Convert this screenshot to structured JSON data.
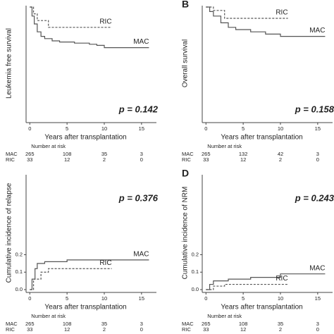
{
  "chart_data": [
    {
      "type": "line",
      "ylabel": "Leukemia free survival",
      "xlabel": "Years after transplantation",
      "annotation": "p = 0.142",
      "xlim": [
        -0.5,
        17
      ],
      "xticks": [
        0,
        5,
        10,
        15
      ],
      "ylim": [
        0,
        1
      ],
      "series": [
        {
          "name": "MAC",
          "color": "#555555",
          "dash": false,
          "x": [
            0,
            0.3,
            0.6,
            1,
            1.5,
            2,
            3,
            4,
            6,
            8,
            9,
            10,
            16
          ],
          "values": [
            1,
            0.92,
            0.85,
            0.78,
            0.74,
            0.72,
            0.7,
            0.69,
            0.68,
            0.67,
            0.66,
            0.64,
            0.64
          ]
        },
        {
          "name": "RIC",
          "color": "#555555",
          "dash": true,
          "x": [
            0,
            0.5,
            1,
            2.5,
            11
          ],
          "values": [
            1,
            0.94,
            0.88,
            0.82,
            0.82
          ]
        }
      ],
      "risk_table": {
        "title": "Number at risk",
        "rows": [
          {
            "name": "MAC",
            "values": [
              265,
              108,
              35,
              3
            ]
          },
          {
            "name": "RIC",
            "values": [
              33,
              12,
              2,
              0
            ]
          }
        ]
      }
    },
    {
      "type": "line",
      "panel": "B",
      "ylabel": "Overall survival",
      "xlabel": "Years after transplantation",
      "annotation": "p = 0.158",
      "xlim": [
        -0.5,
        17
      ],
      "xticks": [
        0,
        5,
        10,
        15
      ],
      "ylim": [
        0,
        1
      ],
      "series": [
        {
          "name": "MAC",
          "color": "#555555",
          "dash": false,
          "x": [
            0,
            0.5,
            1,
            2,
            3,
            4,
            6,
            8,
            10,
            16
          ],
          "values": [
            1,
            0.96,
            0.92,
            0.86,
            0.82,
            0.8,
            0.78,
            0.76,
            0.74,
            0.74
          ]
        },
        {
          "name": "RIC",
          "color": "#555555",
          "dash": true,
          "x": [
            0,
            1,
            2.5,
            11
          ],
          "values": [
            1,
            0.97,
            0.9,
            0.9
          ]
        }
      ],
      "risk_table": {
        "title": "Number at risk",
        "rows": [
          {
            "name": "MAC",
            "values": [
              265,
              132,
              42,
              3
            ]
          },
          {
            "name": "RIC",
            "values": [
              33,
              12,
              2,
              0
            ]
          }
        ]
      }
    },
    {
      "type": "line",
      "ylabel": "Cumulative incidence of relapse",
      "xlabel": "Years after transplantation",
      "annotation": "p = 0.376",
      "xlim": [
        -0.5,
        17
      ],
      "xticks": [
        0,
        5,
        10,
        15
      ],
      "ylim": [
        0,
        0.65
      ],
      "yticks": [
        {
          "value": 0,
          "label": "0.0"
        },
        {
          "value": 0.1,
          "label": "0.1"
        },
        {
          "value": 0.2,
          "label": "0.2"
        }
      ],
      "series": [
        {
          "name": "MAC",
          "color": "#555555",
          "dash": false,
          "x": [
            0,
            0.3,
            0.7,
            1,
            2,
            5,
            16
          ],
          "values": [
            0,
            0.06,
            0.12,
            0.15,
            0.16,
            0.17,
            0.17
          ]
        },
        {
          "name": "RIC",
          "color": "#555555",
          "dash": true,
          "x": [
            0,
            0.5,
            1.5,
            2.5,
            11
          ],
          "values": [
            0,
            0.06,
            0.1,
            0.12,
            0.12
          ]
        }
      ],
      "risk_table": {
        "title": "Number at risk",
        "rows": [
          {
            "name": "MAC",
            "values": [
              265,
              108,
              35,
              3
            ]
          },
          {
            "name": "RIC",
            "values": [
              33,
              12,
              2,
              0
            ]
          }
        ]
      }
    },
    {
      "type": "line",
      "panel": "D",
      "ylabel": "Cumulative incidence of NRM",
      "xlabel": "Years after transplantation",
      "annotation": "p = 0.243",
      "xlim": [
        -0.5,
        17
      ],
      "xticks": [
        0,
        5,
        10,
        15
      ],
      "ylim": [
        0,
        0.65
      ],
      "yticks": [
        {
          "value": 0,
          "label": "0.0"
        },
        {
          "value": 0.1,
          "label": "0.1"
        },
        {
          "value": 0.2,
          "label": "0.2"
        }
      ],
      "series": [
        {
          "name": "MAC",
          "color": "#555555",
          "dash": false,
          "x": [
            0,
            0.5,
            1,
            3,
            6,
            10,
            16
          ],
          "values": [
            0,
            0.03,
            0.05,
            0.06,
            0.07,
            0.09,
            0.09
          ]
        },
        {
          "name": "RIC",
          "color": "#555555",
          "dash": true,
          "x": [
            0,
            1,
            2.5,
            11
          ],
          "values": [
            0,
            0.02,
            0.03,
            0.03
          ]
        }
      ],
      "risk_table": {
        "title": "Number at risk",
        "rows": [
          {
            "name": "MAC",
            "values": [
              265,
              108,
              35,
              3
            ]
          },
          {
            "name": "RIC",
            "values": [
              33,
              12,
              2,
              0
            ]
          }
        ]
      }
    }
  ]
}
